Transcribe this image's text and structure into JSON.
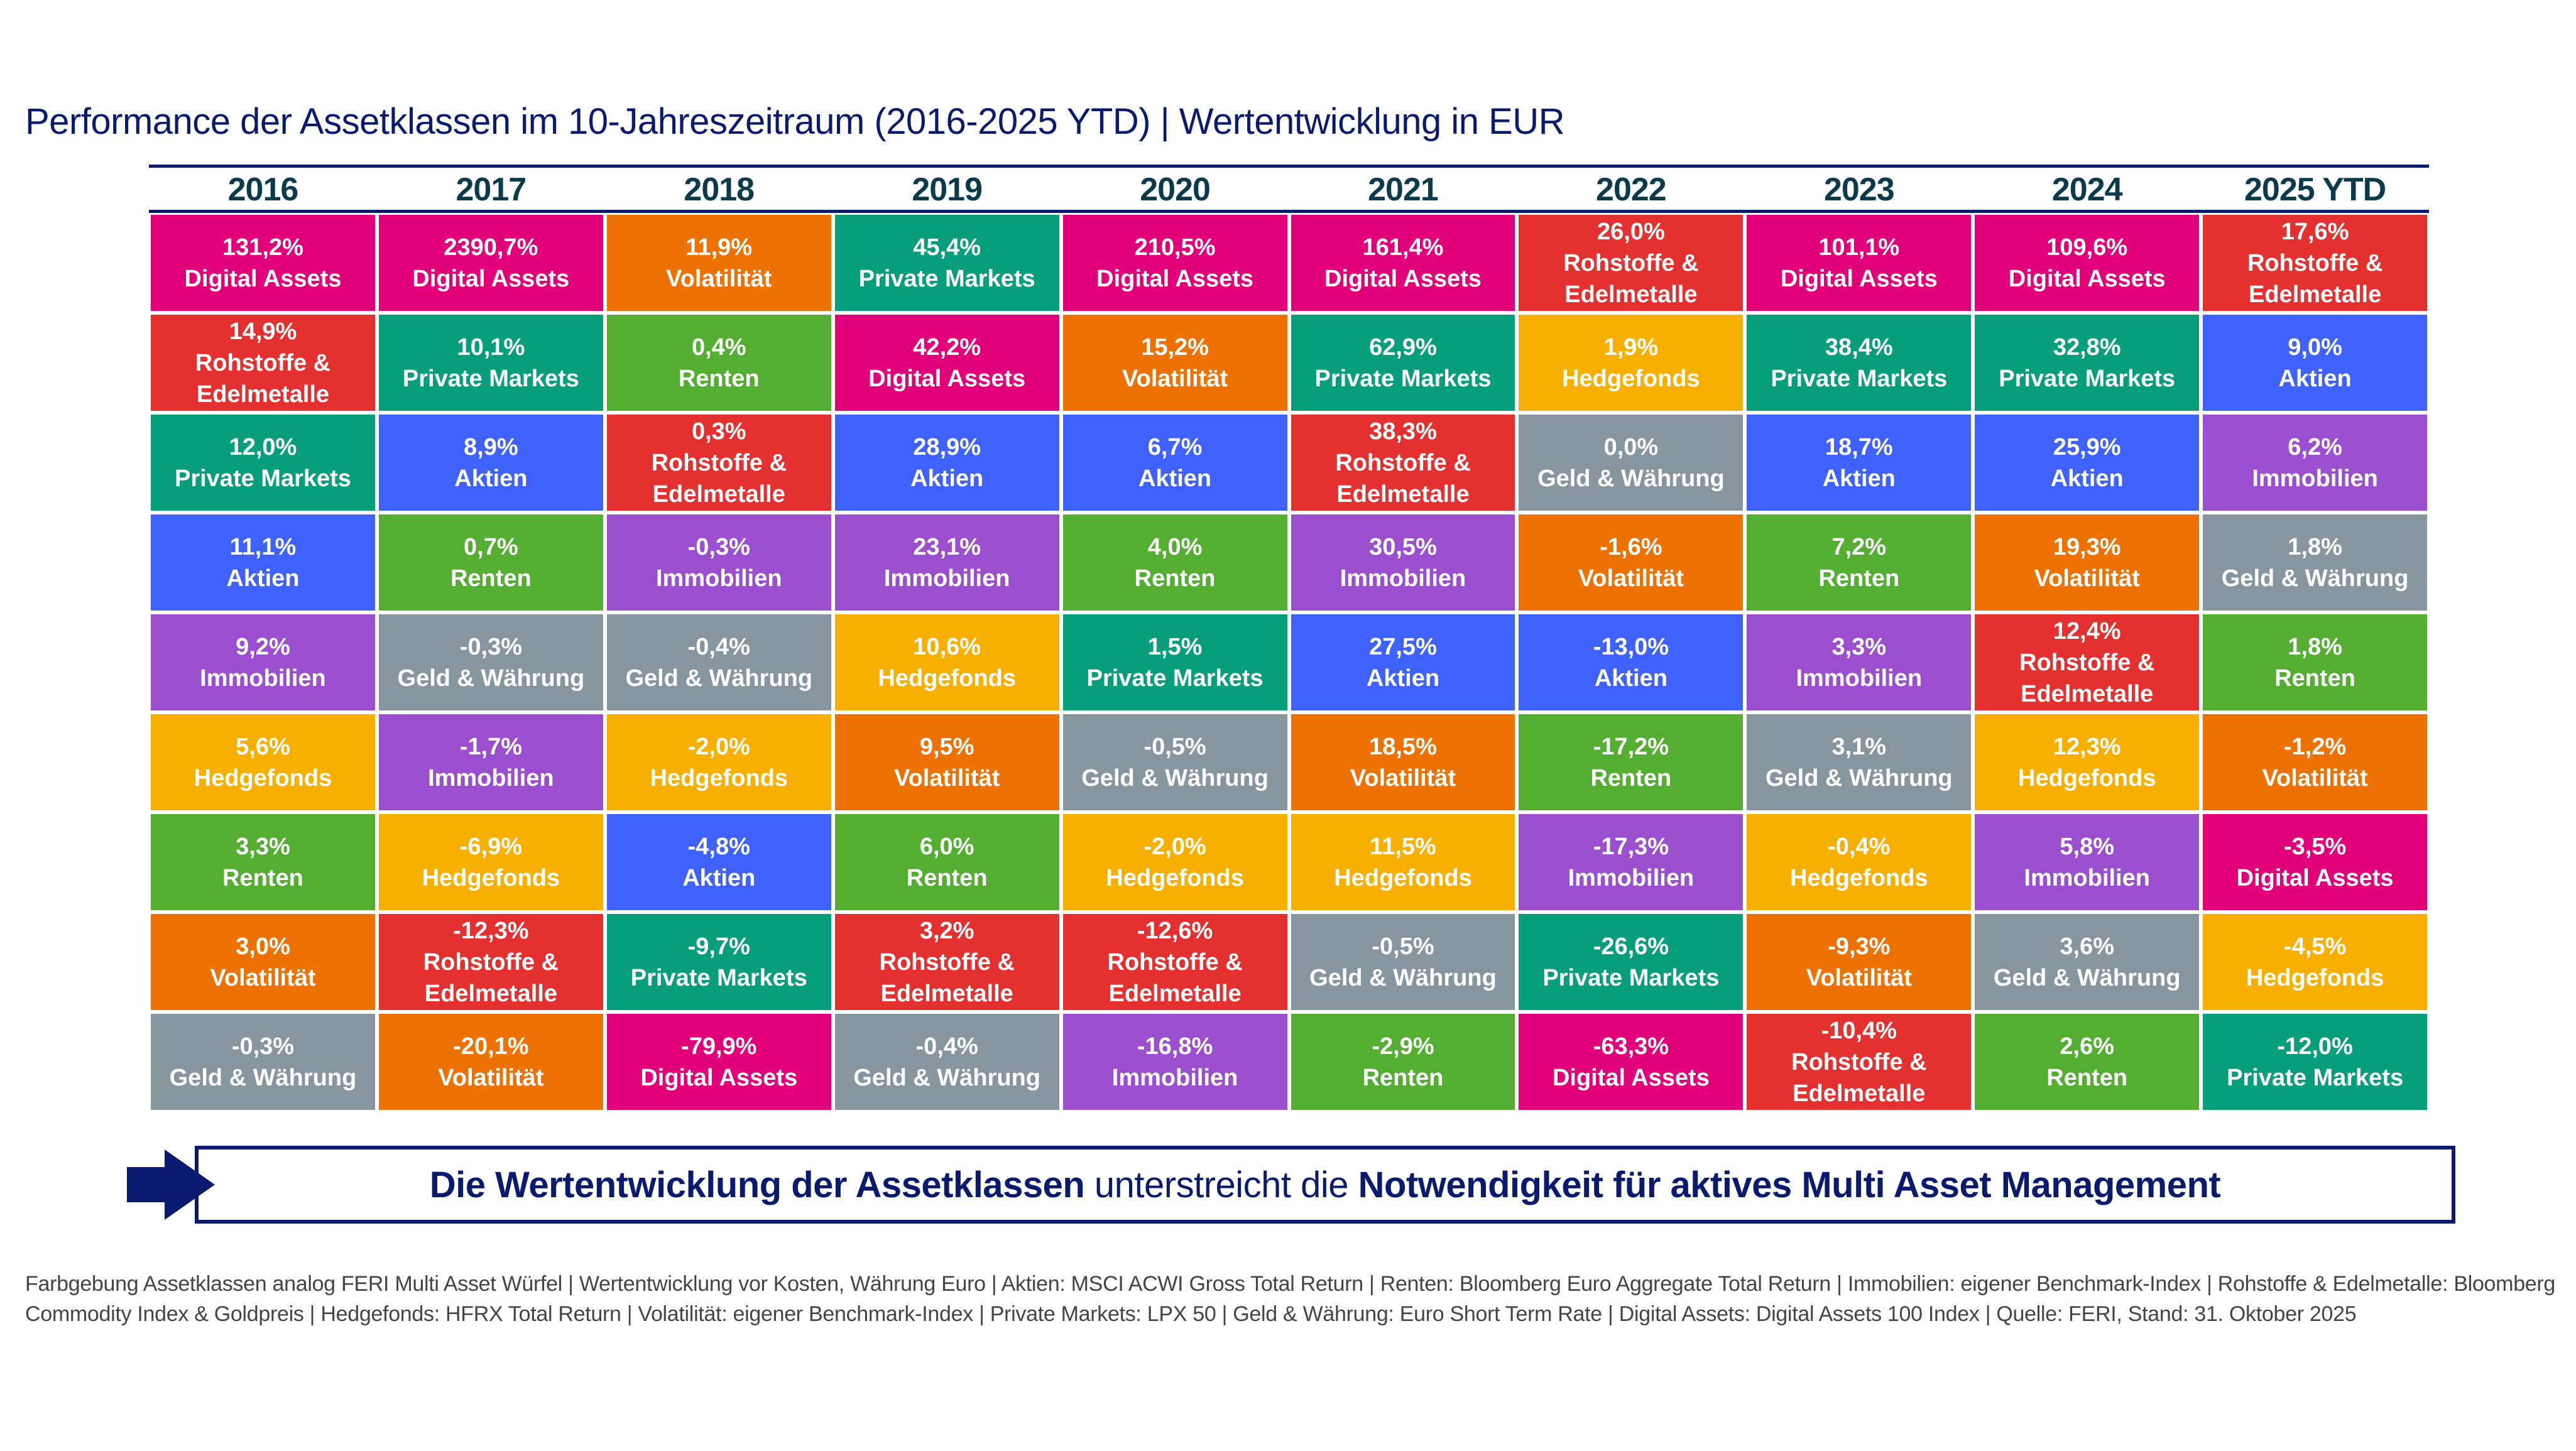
{
  "title": "Performance der Assetklassen im 10-Jahreszeitraum (2016-2025 YTD) | Wertentwicklung in EUR",
  "asset_colors": {
    "Digital Assets": "#E2007A",
    "Rohstoffe & Edelmetalle": "#E53030",
    "Private Markets": "#079E7C",
    "Aktien": "#3F62FF",
    "Renten": "#53AE32",
    "Immobilien": "#9B4FCF",
    "Hedgefonds": "#F8B000",
    "Volatilität": "#EE7203",
    "Geld & Währung": "#87969E"
  },
  "chart_data": {
    "type": "table",
    "title": "Performance der Assetklassen im 10-Jahreszeitraum (2016-2025 YTD) | Wertentwicklung in EUR",
    "columns": [
      {
        "year": "2016",
        "cells": [
          {
            "value": "131,2%",
            "asset": "Digital Assets"
          },
          {
            "value": "14,9%",
            "asset": "Rohstoffe & Edelmetalle"
          },
          {
            "value": "12,0%",
            "asset": "Private Markets"
          },
          {
            "value": "11,1%",
            "asset": "Aktien"
          },
          {
            "value": "9,2%",
            "asset": "Immobilien"
          },
          {
            "value": "5,6%",
            "asset": "Hedgefonds"
          },
          {
            "value": "3,3%",
            "asset": "Renten"
          },
          {
            "value": "3,0%",
            "asset": "Volatilität"
          },
          {
            "value": "-0,3%",
            "asset": "Geld & Währung"
          }
        ]
      },
      {
        "year": "2017",
        "cells": [
          {
            "value": "2390,7%",
            "asset": "Digital Assets"
          },
          {
            "value": "10,1%",
            "asset": "Private Markets"
          },
          {
            "value": "8,9%",
            "asset": "Aktien"
          },
          {
            "value": "0,7%",
            "asset": "Renten"
          },
          {
            "value": "-0,3%",
            "asset": "Geld & Währung"
          },
          {
            "value": "-1,7%",
            "asset": "Immobilien"
          },
          {
            "value": "-6,9%",
            "asset": "Hedgefonds"
          },
          {
            "value": "-12,3%",
            "asset": "Rohstoffe & Edelmetalle"
          },
          {
            "value": "-20,1%",
            "asset": "Volatilität"
          }
        ]
      },
      {
        "year": "2018",
        "cells": [
          {
            "value": "11,9%",
            "asset": "Volatilität"
          },
          {
            "value": "0,4%",
            "asset": "Renten"
          },
          {
            "value": "0,3%",
            "asset": "Rohstoffe & Edelmetalle"
          },
          {
            "value": "-0,3%",
            "asset": "Immobilien"
          },
          {
            "value": "-0,4%",
            "asset": "Geld & Währung"
          },
          {
            "value": "-2,0%",
            "asset": "Hedgefonds"
          },
          {
            "value": "-4,8%",
            "asset": "Aktien"
          },
          {
            "value": "-9,7%",
            "asset": "Private Markets"
          },
          {
            "value": "-79,9%",
            "asset": "Digital Assets"
          }
        ]
      },
      {
        "year": "2019",
        "cells": [
          {
            "value": "45,4%",
            "asset": "Private Markets"
          },
          {
            "value": "42,2%",
            "asset": "Digital Assets"
          },
          {
            "value": "28,9%",
            "asset": "Aktien"
          },
          {
            "value": "23,1%",
            "asset": "Immobilien"
          },
          {
            "value": "10,6%",
            "asset": "Hedgefonds"
          },
          {
            "value": "9,5%",
            "asset": "Volatilität"
          },
          {
            "value": "6,0%",
            "asset": "Renten"
          },
          {
            "value": "3,2%",
            "asset": "Rohstoffe & Edelmetalle"
          },
          {
            "value": "-0,4%",
            "asset": "Geld & Währung"
          }
        ]
      },
      {
        "year": "2020",
        "cells": [
          {
            "value": "210,5%",
            "asset": "Digital Assets"
          },
          {
            "value": "15,2%",
            "asset": "Volatilität"
          },
          {
            "value": "6,7%",
            "asset": "Aktien"
          },
          {
            "value": "4,0%",
            "asset": "Renten"
          },
          {
            "value": "1,5%",
            "asset": "Private Markets"
          },
          {
            "value": "-0,5%",
            "asset": "Geld & Währung"
          },
          {
            "value": "-2,0%",
            "asset": "Hedgefonds"
          },
          {
            "value": "-12,6%",
            "asset": "Rohstoffe & Edelmetalle"
          },
          {
            "value": "-16,8%",
            "asset": "Immobilien"
          }
        ]
      },
      {
        "year": "2021",
        "cells": [
          {
            "value": "161,4%",
            "asset": "Digital Assets"
          },
          {
            "value": "62,9%",
            "asset": "Private Markets"
          },
          {
            "value": "38,3%",
            "asset": "Rohstoffe & Edelmetalle"
          },
          {
            "value": "30,5%",
            "asset": "Immobilien"
          },
          {
            "value": "27,5%",
            "asset": "Aktien"
          },
          {
            "value": "18,5%",
            "asset": "Volatilität"
          },
          {
            "value": "11,5%",
            "asset": "Hedgefonds"
          },
          {
            "value": "-0,5%",
            "asset": "Geld & Währung"
          },
          {
            "value": "-2,9%",
            "asset": "Renten"
          }
        ]
      },
      {
        "year": "2022",
        "cells": [
          {
            "value": "26,0%",
            "asset": "Rohstoffe & Edelmetalle"
          },
          {
            "value": "1,9%",
            "asset": "Hedgefonds"
          },
          {
            "value": "0,0%",
            "asset": "Geld & Währung"
          },
          {
            "value": "-1,6%",
            "asset": "Volatilität"
          },
          {
            "value": "-13,0%",
            "asset": "Aktien"
          },
          {
            "value": "-17,2%",
            "asset": "Renten"
          },
          {
            "value": "-17,3%",
            "asset": "Immobilien"
          },
          {
            "value": "-26,6%",
            "asset": "Private Markets"
          },
          {
            "value": "-63,3%",
            "asset": "Digital Assets"
          }
        ]
      },
      {
        "year": "2023",
        "cells": [
          {
            "value": "101,1%",
            "asset": "Digital Assets"
          },
          {
            "value": "38,4%",
            "asset": "Private Markets"
          },
          {
            "value": "18,7%",
            "asset": "Aktien"
          },
          {
            "value": "7,2%",
            "asset": "Renten"
          },
          {
            "value": "3,3%",
            "asset": "Immobilien"
          },
          {
            "value": "3,1%",
            "asset": "Geld & Währung"
          },
          {
            "value": "-0,4%",
            "asset": "Hedgefonds"
          },
          {
            "value": "-9,3%",
            "asset": "Volatilität"
          },
          {
            "value": "-10,4%",
            "asset": "Rohstoffe & Edelmetalle"
          }
        ]
      },
      {
        "year": "2024",
        "cells": [
          {
            "value": "109,6%",
            "asset": "Digital Assets"
          },
          {
            "value": "32,8%",
            "asset": "Private Markets"
          },
          {
            "value": "25,9%",
            "asset": "Aktien"
          },
          {
            "value": "19,3%",
            "asset": "Volatilität"
          },
          {
            "value": "12,4%",
            "asset": "Rohstoffe & Edelmetalle"
          },
          {
            "value": "12,3%",
            "asset": "Hedgefonds"
          },
          {
            "value": "5,8%",
            "asset": "Immobilien"
          },
          {
            "value": "3,6%",
            "asset": "Geld & Währung"
          },
          {
            "value": "2,6%",
            "asset": "Renten"
          }
        ]
      },
      {
        "year": "2025 YTD",
        "cells": [
          {
            "value": "17,6%",
            "asset": "Rohstoffe & Edelmetalle"
          },
          {
            "value": "9,0%",
            "asset": "Aktien"
          },
          {
            "value": "6,2%",
            "asset": "Immobilien"
          },
          {
            "value": "1,8%",
            "asset": "Geld & Währung"
          },
          {
            "value": "1,8%",
            "asset": "Renten"
          },
          {
            "value": "-1,2%",
            "asset": "Volatilität"
          },
          {
            "value": "-3,5%",
            "asset": "Digital Assets"
          },
          {
            "value": "-4,5%",
            "asset": "Hedgefonds"
          },
          {
            "value": "-12,0%",
            "asset": "Private Markets"
          }
        ]
      }
    ]
  },
  "banner": {
    "part1": "Die Wertentwicklung der Assetklassen",
    "part2": " unterstreicht die ",
    "part3": "Notwendigkeit für aktives Multi Asset Management"
  },
  "footer": "Farbgebung Assetklassen analog FERI Multi Asset Würfel | Wertentwicklung vor Kosten, Währung Euro | Aktien: MSCI ACWI Gross Total Return | Renten: Bloomberg Euro Aggregate Total Return | Immobilien: eigener Benchmark-Index | Rohstoffe & Edelmetalle: Bloomberg Commodity Index & Goldpreis | Hedgefonds: HFRX Total Return | Volatilität: eigener Benchmark-Index | Private Markets: LPX 50 | Geld & Währung: Euro Short Term Rate | Digital Assets: Digital Assets 100 Index | Quelle: FERI, Stand: 31. Oktober 2025"
}
